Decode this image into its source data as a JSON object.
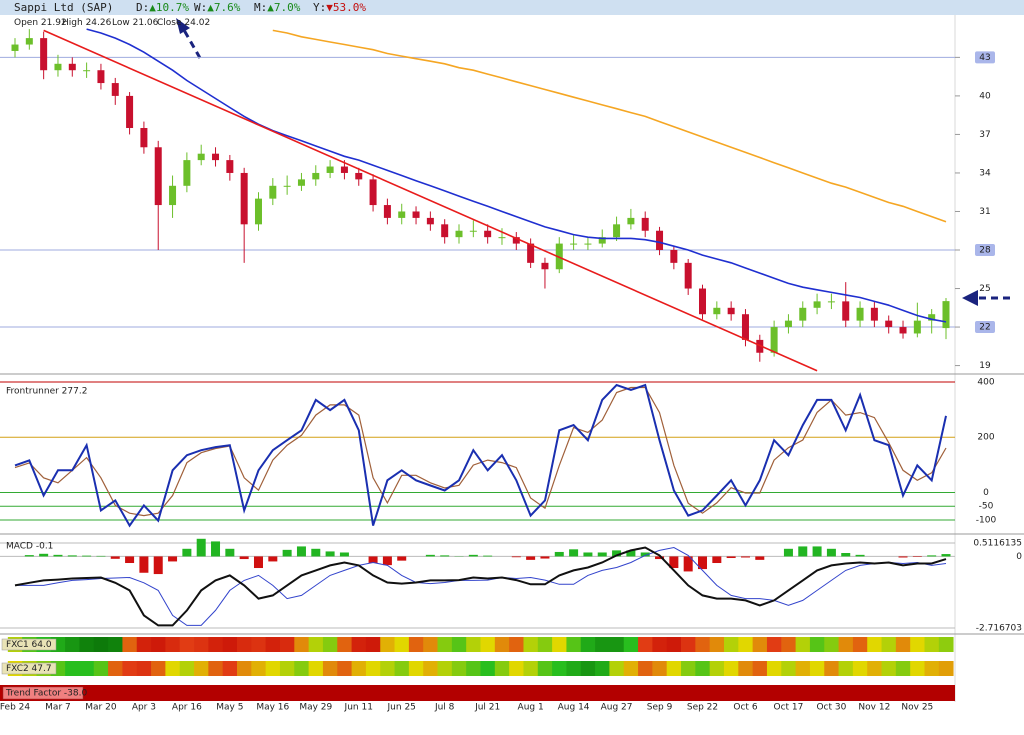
{
  "header": {
    "title": "Sappi Ltd (SAP)",
    "changes": [
      {
        "label": "D:",
        "value": "▲10.7%",
        "color": "#1a8a1a"
      },
      {
        "label": "W:",
        "value": "▲7.6%",
        "color": "#1a8a1a"
      },
      {
        "label": "M:",
        "value": "▲7.0%",
        "color": "#1a8a1a"
      },
      {
        "label": "Y:",
        "value": "▼53.0%",
        "color": "#c41010"
      }
    ]
  },
  "chart_data": [
    {
      "type": "candlestick",
      "categories": [
        "Feb 24",
        null,
        null,
        "Mar 7",
        null,
        null,
        "Mar 20",
        null,
        null,
        "Apr 3",
        null,
        null,
        "Apr 16",
        null,
        null,
        "May 5",
        null,
        null,
        "May 16",
        null,
        null,
        "May 29",
        null,
        null,
        "Jun 11",
        null,
        null,
        "Jun 25",
        null,
        null,
        "Jul 8",
        null,
        null,
        "Jul 21",
        null,
        null,
        "Aug 1",
        null,
        null,
        "Aug 14",
        null,
        null,
        "Aug 27",
        null,
        null,
        "Sep 9",
        null,
        null,
        "Sep 22",
        null,
        null,
        "Oct 6",
        null,
        null,
        "Oct 17",
        null,
        null,
        "Oct 30",
        null,
        null,
        "Nov 12",
        null,
        null,
        "Nov 25",
        null,
        null
      ],
      "open": [
        43.5,
        44,
        44.5,
        42,
        42.5,
        42,
        42,
        41,
        40,
        37.5,
        36,
        31.5,
        33,
        35,
        35.5,
        35,
        34,
        30,
        32,
        33,
        33,
        33.5,
        34,
        34.5,
        34,
        33.5,
        31.5,
        30.5,
        31,
        30.5,
        30,
        29,
        29.5,
        29.5,
        29,
        29,
        28.5,
        27,
        26.5,
        28.5,
        28.5,
        28.5,
        29,
        30,
        30.5,
        29.5,
        28,
        27,
        25,
        23,
        23.5,
        23,
        21,
        20,
        22,
        22.5,
        23.5,
        24,
        24,
        22.5,
        23.5,
        22.5,
        22,
        21.5,
        22.5,
        21.92
      ],
      "high": [
        44.5,
        45.2,
        45,
        43.2,
        43,
        42.6,
        42.5,
        41.4,
        40.3,
        38,
        36.5,
        33.8,
        35.6,
        36.2,
        36,
        35.4,
        34.4,
        32.5,
        33.6,
        33.8,
        34,
        34.6,
        35,
        35,
        34.4,
        33.9,
        32,
        31.6,
        31.4,
        31,
        30.4,
        30,
        30.3,
        30,
        29.7,
        29.4,
        28.9,
        27.4,
        29,
        29.2,
        29,
        29.6,
        30.6,
        31.2,
        31,
        29.8,
        28.3,
        27.3,
        25.3,
        24,
        24,
        23.4,
        21.4,
        22.5,
        23,
        24,
        24.6,
        24.6,
        25.5,
        24,
        24,
        22.9,
        22.5,
        23.9,
        23.4,
        24.26
      ],
      "low": [
        43,
        43.6,
        41.3,
        41.5,
        41.5,
        41.4,
        40.5,
        39.3,
        37,
        35.5,
        28,
        30.5,
        32.5,
        34.6,
        34.5,
        33.4,
        27,
        29.5,
        31.5,
        32.3,
        32.6,
        33,
        33.6,
        33.5,
        33,
        31,
        30,
        30,
        30,
        29.5,
        28.5,
        28.5,
        29,
        28.5,
        28.4,
        28,
        26.6,
        25,
        26.2,
        28,
        28,
        28.2,
        28.7,
        29.6,
        29,
        27.6,
        26.5,
        24.5,
        22.6,
        22.6,
        22.5,
        20.5,
        19.3,
        19.7,
        21.5,
        22,
        23,
        23.4,
        22,
        22,
        22,
        21.5,
        21.1,
        21.2,
        21.5,
        21.06
      ],
      "close": [
        44,
        44.5,
        42,
        42.5,
        42,
        42,
        41,
        40,
        37.5,
        36,
        31.5,
        33,
        35,
        35.5,
        35,
        34,
        30,
        32,
        33,
        33,
        33.5,
        34,
        34.5,
        34,
        33.5,
        31.5,
        30.5,
        31,
        30.5,
        30,
        29,
        29.5,
        29.5,
        29,
        29,
        28.5,
        27,
        26.5,
        28.5,
        28.5,
        28.5,
        29,
        30,
        30.5,
        29.5,
        28,
        27,
        25,
        23,
        23.5,
        23,
        21,
        20,
        22,
        22.5,
        23.5,
        24,
        24,
        22.5,
        23.5,
        22.5,
        22,
        21.5,
        22.5,
        23,
        24.02
      ],
      "up_color": "#6cbf2a",
      "down_color": "#c8102e",
      "ohlc_labels": [
        "Open",
        "High",
        "Low",
        "Close"
      ],
      "ylim": [
        18.5,
        46.3
      ],
      "yticks": [
        43,
        40,
        37,
        34,
        31,
        28,
        25,
        22,
        19
      ],
      "levels": [
        43,
        28,
        22
      ],
      "series": [
        {
          "color": "#f5a623",
          "values": [
            null,
            null,
            null,
            null,
            null,
            null,
            null,
            null,
            null,
            null,
            null,
            null,
            null,
            null,
            null,
            null,
            null,
            null,
            45.1,
            44.9,
            44.6,
            44.4,
            44.2,
            44,
            43.8,
            43.6,
            43.3,
            43.1,
            42.9,
            42.7,
            42.5,
            42.2,
            42,
            41.7,
            41.4,
            41.1,
            40.8,
            40.5,
            40.2,
            39.9,
            39.6,
            39.3,
            39,
            38.7,
            38.4,
            38,
            37.6,
            37.2,
            36.8,
            36.4,
            36,
            35.6,
            35.2,
            34.8,
            34.4,
            34,
            33.6,
            33.2,
            32.9,
            32.5,
            32.1,
            31.7,
            31.4,
            31,
            30.6,
            30.2
          ]
        },
        {
          "color": "#1f2fd0",
          "values": [
            null,
            null,
            null,
            null,
            null,
            45.2,
            44.9,
            44.5,
            44,
            43.4,
            42.7,
            42,
            41.2,
            40.5,
            39.8,
            39.1,
            38.4,
            37.8,
            37.3,
            36.9,
            36.5,
            36.1,
            35.7,
            35.3,
            35,
            34.6,
            34.2,
            33.8,
            33.4,
            33,
            32.6,
            32.2,
            31.8,
            31.4,
            31,
            30.6,
            30.2,
            29.8,
            29.5,
            29.2,
            29,
            28.9,
            28.9,
            28.9,
            28.8,
            28.6,
            28.3,
            28,
            27.6,
            27.3,
            27,
            26.6,
            26.2,
            25.8,
            25.4,
            25.1,
            24.9,
            24.7,
            24.5,
            24.3,
            24,
            23.7,
            23.3,
            22.9,
            22.6,
            22.4
          ]
        }
      ],
      "trendline": {
        "color": "#e81c1c",
        "x": [
          2,
          56
        ],
        "values": [
          45.1,
          18.6
        ]
      }
    },
    {
      "type": "line",
      "label": "Frontrunner 277.2",
      "ylim": [
        -136,
        418
      ],
      "yticks": [
        400,
        200,
        0,
        -50,
        -100
      ],
      "level_colors": [
        "#c00000",
        "#d4a017",
        "#33aa33",
        "#33aa33",
        "#33aa33"
      ],
      "series": [
        {
          "color": "#1a2fb0",
          "values": [
            98,
            116,
            -11,
            80,
            80,
            171,
            -65,
            -29,
            -120,
            -47,
            -102,
            80,
            135,
            153,
            164,
            171,
            -65,
            80,
            153,
            189,
            225,
            335,
            298,
            335,
            225,
            -120,
            44,
            80,
            44,
            25,
            7,
            44,
            153,
            80,
            135,
            44,
            -84,
            -29,
            225,
            244,
            189,
            335,
            389,
            371,
            389,
            189,
            7,
            -84,
            -65,
            -11,
            44,
            -47,
            44,
            189,
            135,
            244,
            335,
            335,
            225,
            353,
            189,
            171,
            -11,
            98,
            44,
            277.2
          ]
        },
        {
          "color": "#a0603a",
          "values": [
            90,
            107,
            53,
            35,
            80,
            126,
            53,
            -47,
            -75,
            -84,
            -75,
            -11,
            108,
            144,
            159,
            168,
            53,
            8,
            117,
            171,
            207,
            280,
            317,
            317,
            280,
            53,
            -38,
            62,
            62,
            35,
            16,
            26,
            99,
            117,
            108,
            90,
            -20,
            -57,
            98,
            235,
            217,
            262,
            362,
            380,
            380,
            289,
            98,
            -39,
            -75,
            -38,
            17,
            -2,
            -2,
            117,
            162,
            190,
            290,
            335,
            280,
            289,
            271,
            180,
            80,
            44,
            71,
            161
          ]
        }
      ]
    },
    {
      "type": "macd",
      "label": "MACD -0.1",
      "ylim": [
        -2.87,
        0.7
      ],
      "yticks": [
        0.5116135,
        0,
        -2.716703
      ],
      "histogram": {
        "up_color": "#22b522",
        "down_color": "#d01010",
        "values": [
          0,
          0.05,
          0.1,
          0.06,
          0.04,
          0.03,
          0.02,
          -0.09,
          -0.25,
          -0.62,
          -0.67,
          -0.19,
          0.29,
          0.67,
          0.57,
          0.29,
          -0.1,
          -0.44,
          -0.19,
          0.25,
          0.38,
          0.29,
          0.19,
          0.15,
          0,
          -0.25,
          -0.33,
          -0.16,
          0,
          0.06,
          0.04,
          0.01,
          0.06,
          0.03,
          0,
          -0.03,
          -0.13,
          -0.08,
          0.17,
          0.27,
          0.15,
          0.15,
          0.23,
          0.23,
          0.15,
          -0.1,
          -0.44,
          -0.57,
          -0.48,
          -0.25,
          -0.06,
          -0.04,
          -0.13,
          0,
          0.29,
          0.38,
          0.38,
          0.29,
          0.13,
          0.06,
          0,
          0,
          -0.04,
          -0.02,
          0.04,
          0.09
        ]
      },
      "series": [
        {
          "color": "#111111",
          "values": [
            -1.1,
            -1,
            -0.91,
            -0.88,
            -0.84,
            -0.82,
            -0.8,
            -1,
            -1.29,
            -2.24,
            -2.62,
            -2.62,
            -2.05,
            -1.29,
            -0.91,
            -0.72,
            -1.1,
            -1.6,
            -1.48,
            -1.1,
            -0.72,
            -0.53,
            -0.34,
            -0.23,
            -0.34,
            -0.72,
            -0.99,
            -1.03,
            -0.99,
            -0.91,
            -0.91,
            -0.9,
            -0.8,
            -0.84,
            -0.8,
            -0.9,
            -1.06,
            -1.06,
            -0.72,
            -0.53,
            -0.42,
            -0.23,
            0.04,
            0.23,
            0.34,
            0.04,
            -0.53,
            -1.1,
            -1.48,
            -1.6,
            -1.6,
            -1.67,
            -1.86,
            -1.67,
            -1.29,
            -0.91,
            -0.53,
            -0.34,
            -0.27,
            -0.23,
            -0.27,
            -0.23,
            -0.34,
            -0.27,
            -0.27,
            -0.1
          ]
        },
        {
          "color": "#3344cc",
          "values": [
            -1.1,
            -1.1,
            -1.1,
            -1,
            -0.91,
            -0.88,
            -0.84,
            -0.82,
            -0.8,
            -1,
            -1.29,
            -2.24,
            -2.62,
            -2.62,
            -2.05,
            -1.29,
            -0.91,
            -0.72,
            -1.1,
            -1.6,
            -1.48,
            -1.1,
            -0.72,
            -0.53,
            -0.34,
            -0.23,
            -0.34,
            -0.72,
            -0.99,
            -1.03,
            -0.99,
            -0.91,
            -0.91,
            -0.9,
            -0.8,
            -0.84,
            -0.8,
            -0.9,
            -1.06,
            -1.06,
            -0.72,
            -0.53,
            -0.42,
            -0.23,
            0.04,
            0.23,
            0.34,
            0.04,
            -0.53,
            -1.1,
            -1.48,
            -1.6,
            -1.6,
            -1.67,
            -1.86,
            -1.67,
            -1.29,
            -0.91,
            -0.53,
            -0.34,
            -0.27,
            -0.23,
            -0.27,
            -0.23,
            -0.34,
            -0.27
          ]
        }
      ]
    },
    {
      "type": "heatmap",
      "label": "FXC1 64.0",
      "values": [
        60,
        70,
        75,
        80,
        85,
        90,
        92,
        90,
        40,
        20,
        15,
        25,
        35,
        30,
        20,
        15,
        25,
        30,
        20,
        25,
        45,
        60,
        65,
        40,
        20,
        15,
        50,
        55,
        40,
        45,
        65,
        70,
        60,
        55,
        45,
        40,
        60,
        65,
        55,
        70,
        80,
        85,
        85,
        75,
        35,
        20,
        15,
        30,
        40,
        45,
        60,
        55,
        45,
        35,
        40,
        60,
        70,
        65,
        45,
        40,
        55,
        60,
        45,
        55,
        60,
        64
      ]
    },
    {
      "type": "heatmap",
      "label": "FXC2 47.7",
      "values": [
        55,
        60,
        65,
        70,
        75,
        75,
        70,
        40,
        35,
        30,
        40,
        55,
        60,
        50,
        40,
        35,
        45,
        50,
        55,
        60,
        65,
        55,
        45,
        40,
        50,
        55,
        60,
        65,
        55,
        50,
        60,
        65,
        70,
        75,
        65,
        55,
        60,
        70,
        75,
        80,
        85,
        80,
        60,
        50,
        40,
        45,
        55,
        65,
        70,
        60,
        55,
        45,
        40,
        55,
        60,
        50,
        55,
        45,
        60,
        55,
        50,
        60,
        65,
        55,
        50,
        47.7
      ]
    },
    {
      "type": "band",
      "label": "Trend Factor -38.0",
      "value": -38,
      "color": "#b30000"
    }
  ]
}
